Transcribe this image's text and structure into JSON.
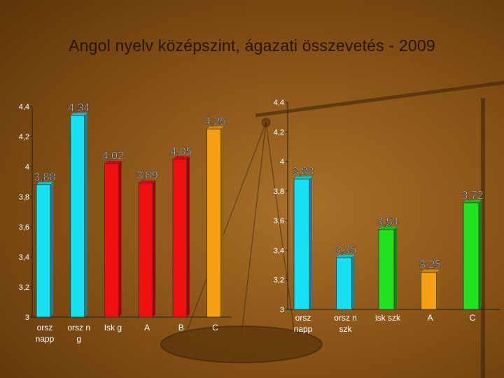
{
  "title": "Angol nyelv középszint, ágazati összevetés - 2009",
  "chart_data": [
    {
      "type": "bar",
      "categories": [
        [
          "orsz",
          "napp"
        ],
        [
          "orsz n",
          "g"
        ],
        [
          "Isk g"
        ],
        [
          "A"
        ],
        [
          "B"
        ],
        [
          "C"
        ]
      ],
      "values": [
        3.88,
        4.34,
        4.02,
        3.89,
        4.05,
        4.25
      ],
      "value_labels": [
        "3,88",
        "4,34",
        "4,02",
        "3,89",
        "4,05",
        "4,25"
      ],
      "ylim": [
        3,
        4.4
      ],
      "yticks": [
        "3",
        "3,2",
        "3,4",
        "3,6",
        "3,8",
        "4",
        "4,2",
        "4,4"
      ],
      "colors": [
        "#19e0f0",
        "#19e0f0",
        "#ee1010",
        "#ee1010",
        "#ee1010",
        "#f5a010"
      ],
      "grid": false
    },
    {
      "type": "bar",
      "categories": [
        [
          "orsz",
          "napp"
        ],
        [
          "orsz n",
          "szk"
        ],
        [
          "isk szk"
        ],
        [
          "A"
        ],
        [
          "C"
        ]
      ],
      "values": [
        3.88,
        3.35,
        3.54,
        3.25,
        3.72
      ],
      "value_labels": [
        "3,88",
        "3,35",
        "3,54",
        "3,25",
        "3,72"
      ],
      "ylim": [
        3,
        4.4
      ],
      "yticks": [
        "3",
        "3,2",
        "3,4",
        "3,6",
        "3,8",
        "4",
        "4,2",
        "4,4"
      ],
      "colors": [
        "#19e0f0",
        "#19e0f0",
        "#20e020",
        "#f5a010",
        "#20e020"
      ],
      "grid": false
    }
  ]
}
